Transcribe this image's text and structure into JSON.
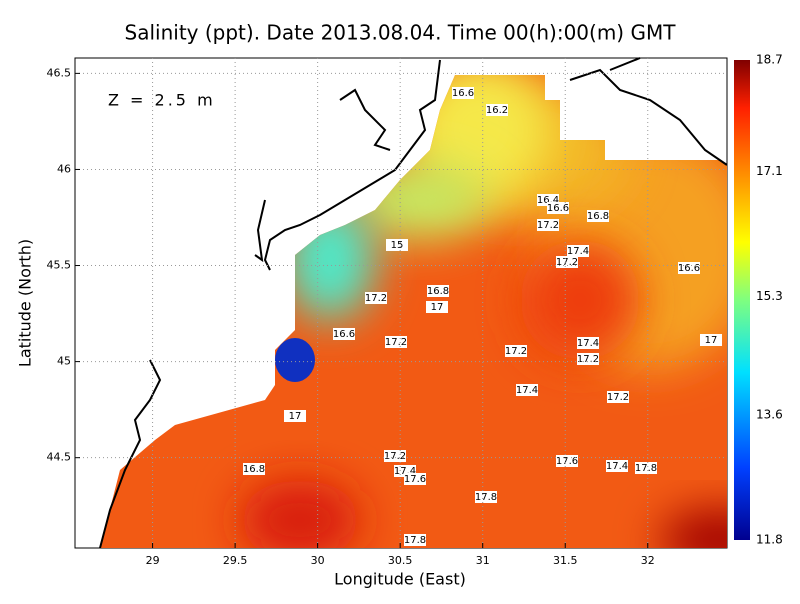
{
  "chart_data": {
    "type": "contour",
    "title": "Salinity (ppt). Date 2013.08.04. Time 00(h):00(m) GMT",
    "xlabel": "Longitude (East)",
    "ylabel": "Latitude (North)",
    "annotation": "Z = 2.5 m",
    "xlim": [
      28.53,
      32.48
    ],
    "ylim": [
      44.03,
      46.58
    ],
    "xticks": [
      29,
      29.5,
      30,
      30.5,
      31,
      31.5,
      32
    ],
    "yticks": [
      44.5,
      45,
      45.5,
      46,
      46.5
    ],
    "grid": true,
    "colorbar": {
      "lim": [
        11.8,
        18.7
      ],
      "ticks": [
        11.8,
        13.6,
        15.3,
        17.1,
        18.7
      ]
    },
    "contour_labels": [
      16.6,
      16.2,
      16.4,
      16.6,
      16.8,
      17.2,
      17.4,
      17.2,
      16.6,
      15,
      16.8,
      17.2,
      17,
      16.6,
      17.2,
      17.2,
      17.4,
      17.2,
      17,
      17.4,
      17.2,
      17,
      17.2,
      17.6,
      17.4,
      17.8,
      16.8,
      17.4,
      17.6,
      17.8,
      17.8
    ]
  }
}
